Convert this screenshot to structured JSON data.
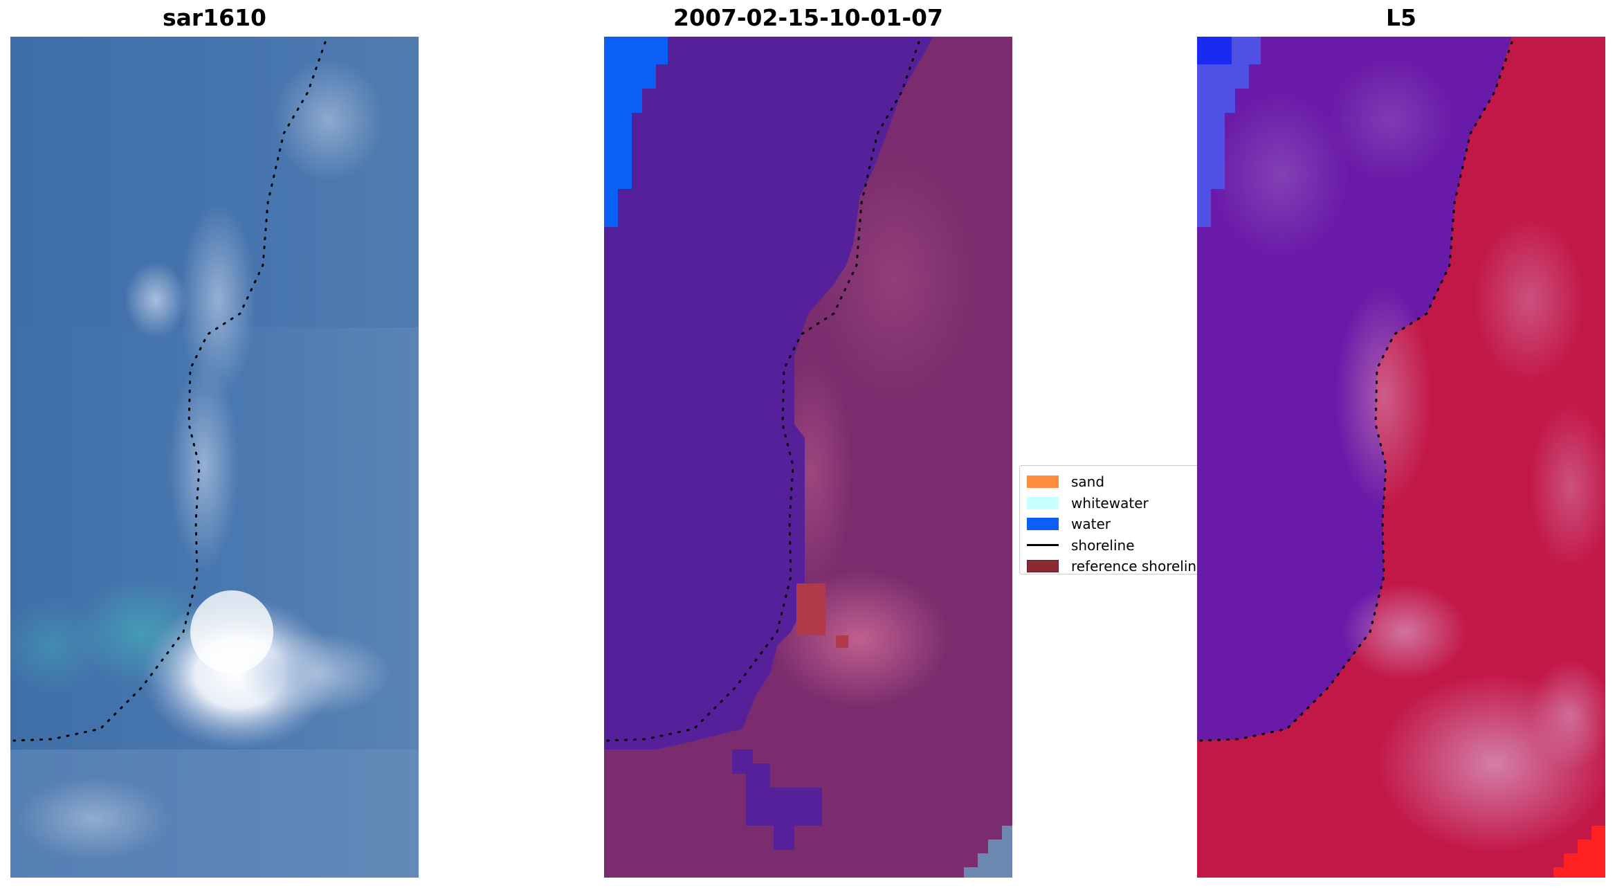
{
  "panels": {
    "left_title": "sar1610",
    "middle_title": "2007-02-15-10-01-07",
    "right_title": "L5"
  },
  "legend": {
    "items": [
      {
        "label": "sand",
        "color": "#ff8c3f",
        "kind": "patch"
      },
      {
        "label": "whitewater",
        "color": "#c8ffff",
        "kind": "patch"
      },
      {
        "label": "water",
        "color": "#0a5ff5",
        "kind": "patch"
      },
      {
        "label": "shoreline",
        "color": "#000000",
        "kind": "line"
      },
      {
        "label": "reference shoreline",
        "color": "#8c2a33",
        "kind": "patch"
      }
    ]
  },
  "colors": {
    "sar_base": "#4a7ab2",
    "classified_water_land": "#55209a",
    "classified_land": "#7a2a6e",
    "water_class": "#0a5ff5",
    "reference_patch": "#b03a4a",
    "index_land": "#c0104a",
    "index_water": "#6a18a8"
  }
}
